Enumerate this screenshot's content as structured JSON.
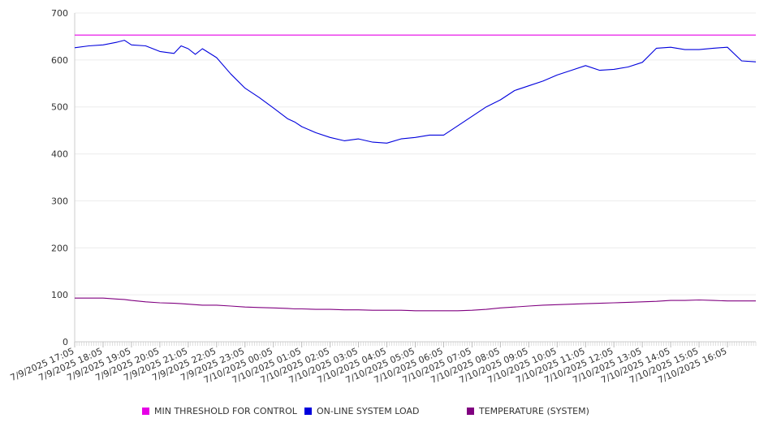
{
  "chart_data": {
    "type": "line",
    "title": "",
    "xlabel": "",
    "ylabel": "",
    "ylim": [
      0,
      700
    ],
    "yticks": [
      0,
      100,
      200,
      300,
      400,
      500,
      600,
      700
    ],
    "grid": true,
    "legend_position": "bottom",
    "x_start": "7/9/2025 17:05",
    "x_end": "7/10/2025 17:05",
    "x_tick_labels": [
      "7/9/2025 17:05",
      "7/9/2025 18:05",
      "7/9/2025 19:05",
      "7/9/2025 20:05",
      "7/9/2025 21:05",
      "7/9/2025 22:05",
      "7/9/2025 23:05",
      "7/10/2025 00:05",
      "7/10/2025 01:05",
      "7/10/2025 02:05",
      "7/10/2025 03:05",
      "7/10/2025 04:05",
      "7/10/2025 05:05",
      "7/10/2025 06:05",
      "7/10/2025 07:05",
      "7/10/2025 08:05",
      "7/10/2025 09:05",
      "7/10/2025 10:05",
      "7/10/2025 11:05",
      "7/10/2025 12:05",
      "7/10/2025 13:05",
      "7/10/2025 14:05",
      "7/10/2025 15:05",
      "7/10/2025 16:05"
    ],
    "x": [
      "7/9/2025 17:05",
      "7/9/2025 17:35",
      "7/9/2025 18:05",
      "7/9/2025 18:35",
      "7/9/2025 18:50",
      "7/9/2025 19:05",
      "7/9/2025 19:35",
      "7/9/2025 20:05",
      "7/9/2025 20:35",
      "7/9/2025 20:50",
      "7/9/2025 21:05",
      "7/9/2025 21:20",
      "7/9/2025 21:35",
      "7/9/2025 22:05",
      "7/9/2025 22:35",
      "7/9/2025 23:05",
      "7/9/2025 23:35",
      "7/10/2025 00:05",
      "7/10/2025 00:35",
      "7/10/2025 00:50",
      "7/10/2025 01:05",
      "7/10/2025 01:35",
      "7/10/2025 02:05",
      "7/10/2025 02:35",
      "7/10/2025 03:05",
      "7/10/2025 03:35",
      "7/10/2025 04:05",
      "7/10/2025 04:35",
      "7/10/2025 05:05",
      "7/10/2025 05:35",
      "7/10/2025 06:05",
      "7/10/2025 06:35",
      "7/10/2025 07:05",
      "7/10/2025 07:35",
      "7/10/2025 08:05",
      "7/10/2025 08:35",
      "7/10/2025 09:05",
      "7/10/2025 09:35",
      "7/10/2025 10:05",
      "7/10/2025 10:35",
      "7/10/2025 11:05",
      "7/10/2025 11:35",
      "7/10/2025 12:05",
      "7/10/2025 12:35",
      "7/10/2025 13:05",
      "7/10/2025 13:35",
      "7/10/2025 14:05",
      "7/10/2025 14:35",
      "7/10/2025 15:05",
      "7/10/2025 15:35",
      "7/10/2025 16:05",
      "7/10/2025 16:35",
      "7/10/2025 17:05"
    ],
    "series": [
      {
        "name": "MIN THRESHOLD FOR CONTROL",
        "color": "#e600e6",
        "values": [
          653,
          653,
          653,
          653,
          653,
          653,
          653,
          653,
          653,
          653,
          653,
          653,
          653,
          653,
          653,
          653,
          653,
          653,
          653,
          653,
          653,
          653,
          653,
          653,
          653,
          653,
          653,
          653,
          653,
          653,
          653,
          653,
          653,
          653,
          653,
          653,
          653,
          653,
          653,
          653,
          653,
          653,
          653,
          653,
          653,
          653,
          653,
          653,
          653,
          653,
          653,
          653,
          653
        ]
      },
      {
        "name": "ON-LINE SYSTEM LOAD",
        "color": "#0000dd",
        "values": [
          626,
          630,
          632,
          638,
          642,
          632,
          630,
          618,
          614,
          630,
          624,
          612,
          624,
          605,
          570,
          540,
          520,
          498,
          475,
          468,
          458,
          445,
          435,
          428,
          432,
          425,
          423,
          432,
          435,
          440,
          440,
          460,
          480,
          500,
          515,
          535,
          545,
          555,
          568,
          578,
          588,
          578,
          580,
          585,
          595,
          625,
          627,
          622,
          622,
          625,
          627,
          598,
          596
        ]
      },
      {
        "name": "TEMPERATURE (SYSTEM)",
        "color": "#800080",
        "values": [
          93,
          93,
          93,
          91,
          90,
          88,
          85,
          83,
          82,
          81,
          80,
          79,
          78,
          78,
          76,
          74,
          73,
          72,
          71,
          70,
          70,
          69,
          69,
          68,
          68,
          67,
          67,
          67,
          66,
          66,
          66,
          66,
          67,
          69,
          72,
          74,
          76,
          78,
          79,
          80,
          81,
          82,
          83,
          84,
          85,
          86,
          88,
          88,
          89,
          88,
          87,
          87,
          87
        ]
      }
    ]
  }
}
